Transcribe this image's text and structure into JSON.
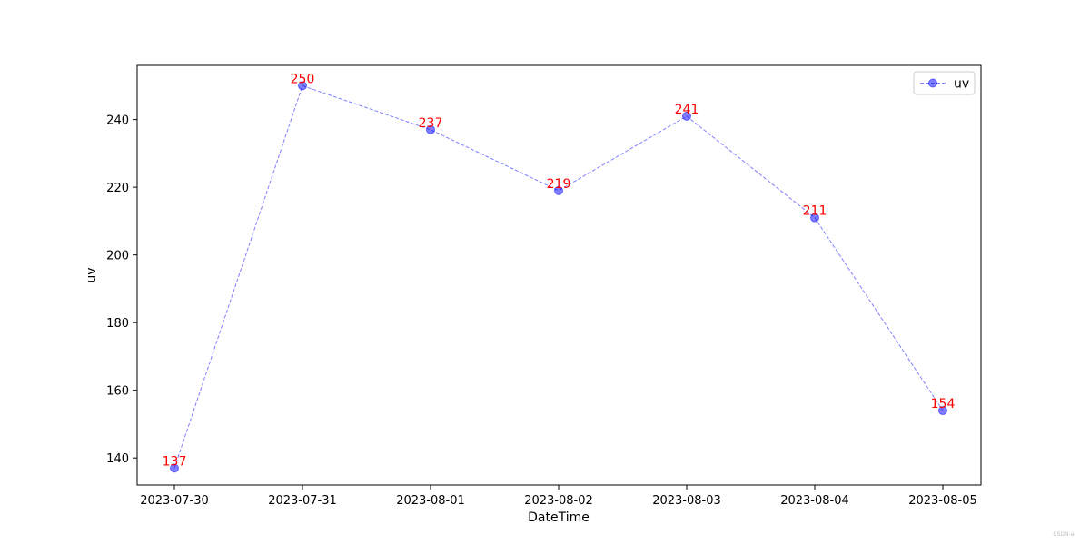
{
  "chart_data": {
    "type": "line",
    "title": "",
    "xlabel": "DateTime",
    "ylabel": "uv",
    "categories": [
      "2023-07-30",
      "2023-07-31",
      "2023-08-01",
      "2023-08-02",
      "2023-08-03",
      "2023-08-04",
      "2023-08-05"
    ],
    "series": [
      {
        "name": "uv",
        "values": [
          137,
          250,
          237,
          219,
          241,
          211,
          154
        ],
        "color": "#0000ff",
        "line_style": "dashed",
        "marker": "circle",
        "alpha": 0.5
      }
    ],
    "data_label_color": "#ff0000",
    "ylim": [
      132,
      256
    ],
    "yticks": [
      140,
      160,
      180,
      200,
      220,
      240
    ],
    "grid": false,
    "legend_position": "top-right"
  },
  "watermark": "CSDN-ai"
}
